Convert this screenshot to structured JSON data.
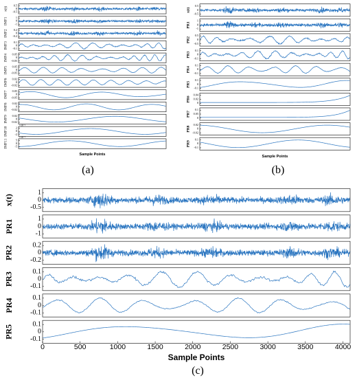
{
  "colors": {
    "signal": "#2a75c0",
    "axis": "#000000",
    "background": "#ffffff"
  },
  "chart_data": [
    {
      "type": "line",
      "panel_label": "(a)",
      "xlabel": "Sample Points",
      "series": [
        {
          "name": "x(t)",
          "yticks": [
            "0.5",
            "0",
            "-0.5"
          ]
        },
        {
          "name": "IMF1",
          "yticks": [
            "1",
            "0",
            "-1"
          ]
        },
        {
          "name": "IMF2",
          "yticks": [
            "0.2",
            "0",
            "-0.2"
          ]
        },
        {
          "name": "IMF3",
          "yticks": [
            "0.1",
            "0",
            "-0.1"
          ]
        },
        {
          "name": "IMF4",
          "yticks": [
            "0.05",
            "0",
            "-0.05"
          ]
        },
        {
          "name": "IMF5",
          "yticks": [
            "0.05",
            "0",
            "-0.05"
          ]
        },
        {
          "name": "IMF6",
          "yticks": [
            "0.02",
            "0",
            "-0.02"
          ]
        },
        {
          "name": "IMF7",
          "yticks": [
            "0.05",
            "0",
            "-0.05"
          ]
        },
        {
          "name": "IMF8",
          "yticks": [
            "0.02",
            "0",
            "-0.02"
          ]
        },
        {
          "name": "IMF9",
          "yticks": [
            "0.02",
            "0",
            "-0.02"
          ]
        },
        {
          "name": "IMF10",
          "yticks": [
            "2",
            "0",
            "-2"
          ],
          "exponent": "×10⁻³"
        },
        {
          "name": "IMF11",
          "yticks": [
            "5",
            "0",
            "-5"
          ],
          "exponent": "×10⁻³"
        }
      ]
    },
    {
      "type": "line",
      "panel_label": "(b)",
      "xlabel": "Sample Points",
      "series": [
        {
          "name": "x(t)",
          "yticks": [
            "0.5",
            "0",
            "-0.5"
          ]
        },
        {
          "name": "PR1",
          "yticks": [
            "1",
            "0",
            "-1"
          ]
        },
        {
          "name": "PR2",
          "yticks": [
            "0.5",
            "0",
            "-0.5"
          ]
        },
        {
          "name": "PR3",
          "yticks": [
            "0.1",
            "0",
            "-0.1"
          ]
        },
        {
          "name": "PR4",
          "yticks": [
            "0.1",
            "0",
            "-0.1"
          ]
        },
        {
          "name": "PR5",
          "yticks": [
            "0.1",
            "0",
            "-0.1"
          ]
        },
        {
          "name": "PR6",
          "yticks": [
            "0.04",
            "0.02",
            "0"
          ]
        },
        {
          "name": "PR7",
          "yticks": [
            "0.1",
            "0.05",
            "0"
          ]
        },
        {
          "name": "PR8",
          "yticks": [
            "0.02",
            "0",
            "-0.02"
          ]
        },
        {
          "name": "PR9",
          "yticks": [
            "0.1",
            "0",
            "-0.1"
          ]
        }
      ]
    },
    {
      "type": "line",
      "panel_label": "(c)",
      "xlabel": "Sample Points",
      "xlim": [
        0,
        4096
      ],
      "xticks": [
        "0",
        "500",
        "1000",
        "1500",
        "2000",
        "2500",
        "3000",
        "3500",
        "4000"
      ],
      "series": [
        {
          "name": "x(t)",
          "yticks": [
            "1",
            "0",
            "-0.5"
          ]
        },
        {
          "name": "PR1",
          "yticks": [
            "1",
            "0",
            "-1"
          ]
        },
        {
          "name": "PR2",
          "yticks": [
            "0.2",
            "0",
            "-0.2"
          ]
        },
        {
          "name": "PR3",
          "yticks": [
            "0.1",
            "0",
            "-0.1"
          ]
        },
        {
          "name": "PR4",
          "yticks": [
            "0.1",
            "0",
            "-0.1"
          ]
        },
        {
          "name": "PR5",
          "yticks": [
            "0.1",
            "0",
            "-0.1"
          ]
        }
      ]
    }
  ]
}
